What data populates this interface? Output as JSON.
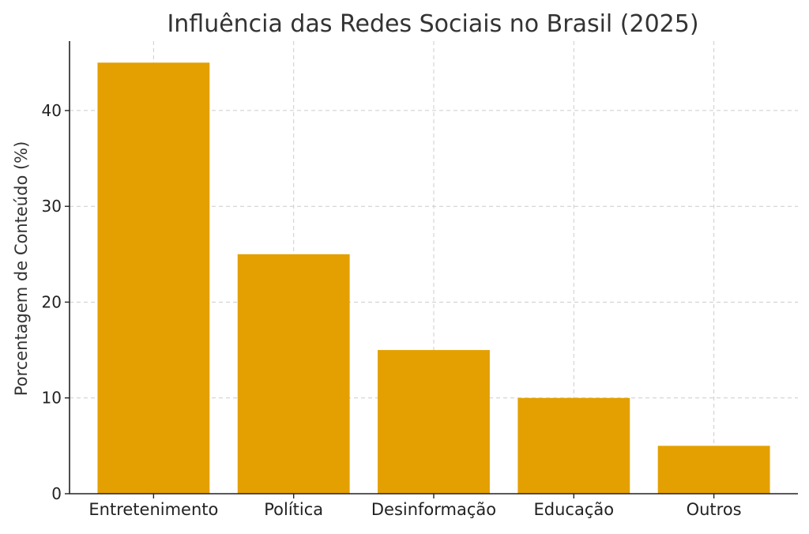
{
  "chart_data": {
    "type": "bar",
    "title": "Influência das Redes Sociais no Brasil (2025)",
    "xlabel": "",
    "ylabel": "Porcentagem de Conteúdo (%)",
    "categories": [
      "Entretenimento",
      "Política",
      "Desinformação",
      "Educação",
      "Outros"
    ],
    "values": [
      45,
      25,
      15,
      10,
      5
    ],
    "ylim": [
      0,
      47.25
    ],
    "yticks": [
      0,
      10,
      20,
      30,
      40
    ],
    "grid": true,
    "bar_color": "#E3A000",
    "grid_color": "#cccccc"
  }
}
